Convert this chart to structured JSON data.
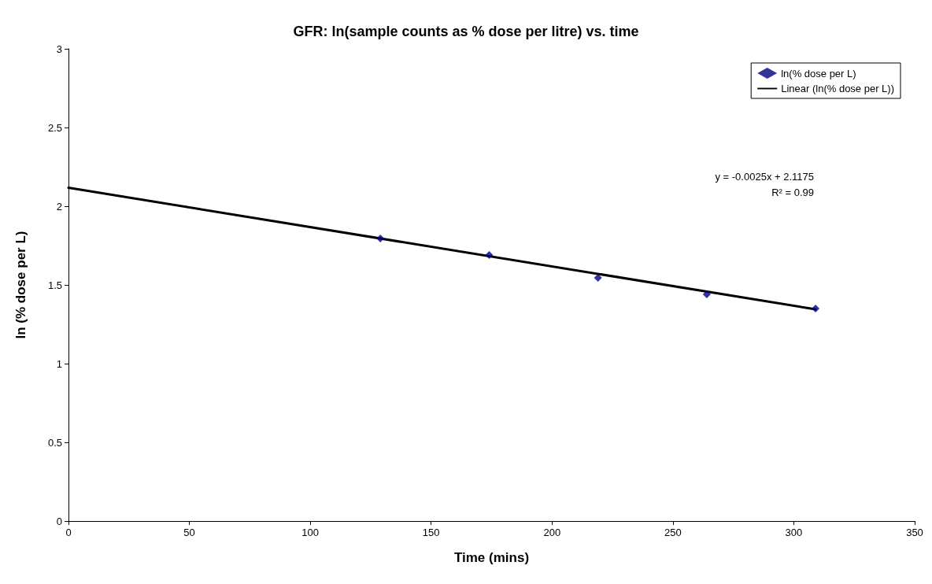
{
  "chart_data": {
    "type": "scatter",
    "title": "GFR: ln(sample counts as % dose per litre) vs. time",
    "xlabel": "Time (mins)",
    "ylabel": "ln (% dose per L)",
    "xlim": [
      0,
      350
    ],
    "xticks": [
      0,
      50,
      100,
      150,
      200,
      250,
      300,
      350
    ],
    "ylim": [
      0,
      3
    ],
    "yticks": [
      0,
      0.5,
      1,
      1.5,
      2,
      2.5,
      3
    ],
    "grid": false,
    "legend": "top right",
    "marker": "diamond",
    "series": [
      {
        "name": "ln(% dose per L)",
        "color": "#000080",
        "x": [
          129,
          174,
          219,
          264,
          309
        ],
        "values": [
          1.795,
          1.69,
          1.545,
          1.44,
          1.35
        ]
      },
      {
        "name": "Linear (ln(% dose per L))",
        "type": "line",
        "color": "#000000",
        "x": [
          0,
          309
        ],
        "values": [
          2.1175,
          1.345
        ],
        "marker": "none",
        "line_style": "solid"
      }
    ],
    "annotations": [
      "y = -0.0025x + 2.1175",
      "R² = 0.99"
    ]
  }
}
